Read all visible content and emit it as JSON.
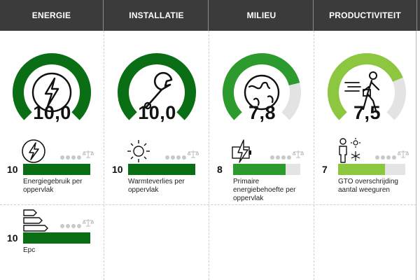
{
  "tabs": [
    {
      "label": "ENERGIE"
    },
    {
      "label": "INSTALLATIE"
    },
    {
      "label": "MILIEU"
    },
    {
      "label": "PRODUCTIVITEIT"
    }
  ],
  "gauges": [
    {
      "score": "10,0",
      "value": 10.0,
      "max": 10,
      "color": "#0a6e14",
      "icon": "lightning-bolt-icon"
    },
    {
      "score": "10,0",
      "value": 10.0,
      "max": 10,
      "color": "#0a6e14",
      "icon": "wrench-icon"
    },
    {
      "score": "7,8",
      "value": 7.8,
      "max": 10,
      "color": "#2d9a2d",
      "icon": "globe-icon"
    },
    {
      "score": "7,5",
      "value": 7.5,
      "max": 10,
      "color": "#8dc63f",
      "icon": "walking-person-icon"
    }
  ],
  "indicators": [
    {
      "value": "10",
      "fill": 1.0,
      "color": "#0a6e14",
      "label": "Energiegebruik per oppervlak",
      "icon": "lightning-bolt-icon"
    },
    {
      "value": "10",
      "fill": 1.0,
      "color": "#0a6e14",
      "label": "Warmteverlies per oppervlak",
      "icon": "sun-icon"
    },
    {
      "value": "8",
      "fill": 0.78,
      "color": "#2d9a2d",
      "label": "Primaire energiebehoefte per oppervlak",
      "icon": "battery-bolt-icon"
    },
    {
      "value": "7",
      "fill": 0.7,
      "color": "#8dc63f",
      "label": "GTO overschrijding aantal weeguren",
      "icon": "person-temperature-icon"
    }
  ],
  "extra_indicator": {
    "value": "10",
    "fill": 1.0,
    "color": "#0a6e14",
    "label": "Epc",
    "icon": "energy-label-icon"
  }
}
